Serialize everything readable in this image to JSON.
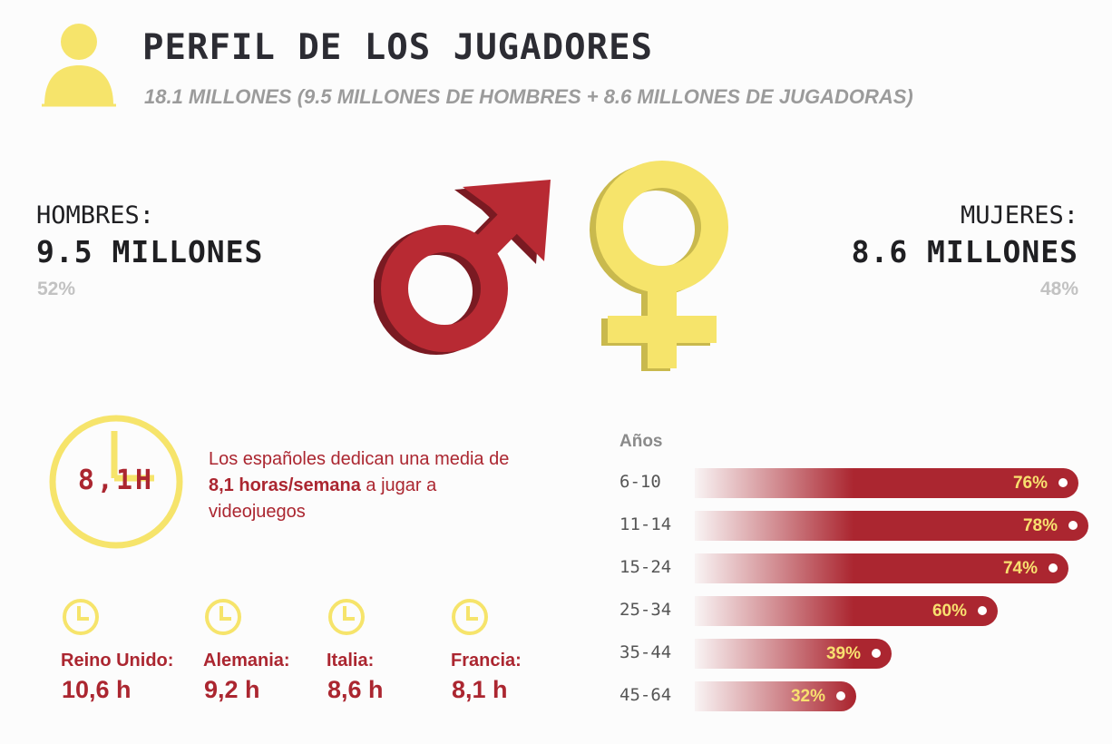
{
  "header": {
    "title": "PERFIL DE LOS JUGADORES",
    "subtitle": "18.1 MILLONES (9.5 MILLONES DE HOMBRES + 8.6 MILLONES DE JUGADORAS)"
  },
  "gender": {
    "men": {
      "label": "HOMBRES:",
      "value": "9.5 MILLONES",
      "pct": "52%"
    },
    "women": {
      "label": "MUJERES:",
      "value": "8.6 MILLONES",
      "pct": "48%"
    }
  },
  "hours": {
    "clock_value": "8,1H",
    "text_before": "Los españoles dedican una media de ",
    "text_bold": "8,1 horas/semana",
    "text_after": " a jugar a videojuegos",
    "countries": [
      {
        "name": "Reino Unido:",
        "value": "10,6 h"
      },
      {
        "name": "Alemania:",
        "value": "9,2 h"
      },
      {
        "name": "Italia:",
        "value": "8,6 h"
      },
      {
        "name": "Francia:",
        "value": "8,1 h"
      }
    ]
  },
  "colors": {
    "red": "#ab2630",
    "yellow": "#f6e46b",
    "dark": "#2c2c33"
  },
  "chart_data": {
    "type": "bar",
    "orientation": "horizontal",
    "title": "Años",
    "categories": [
      "6-10",
      "11-14",
      "15-24",
      "25-34",
      "35-44",
      "45-64"
    ],
    "values": [
      76,
      78,
      74,
      60,
      39,
      32
    ],
    "value_labels": [
      "76%",
      "78%",
      "74%",
      "60%",
      "39%",
      "32%"
    ],
    "xlim": [
      0,
      78
    ]
  }
}
